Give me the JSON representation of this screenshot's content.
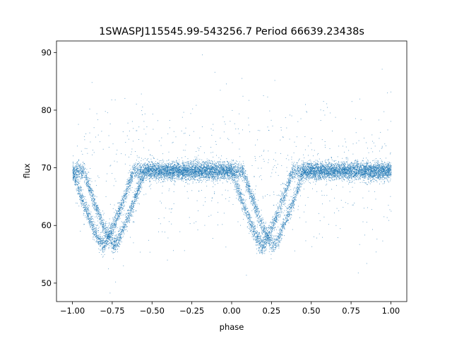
{
  "chart_data": {
    "type": "scatter",
    "title": "1SWASPJ115545.99-543256.7 Period 66639.23438s",
    "xlabel": "phase",
    "ylabel": "flux",
    "xlim": [
      -1.1,
      1.1
    ],
    "ylim": [
      46.8,
      92.0
    ],
    "x_ticks": [
      -1.0,
      -0.75,
      -0.5,
      -0.25,
      0.0,
      0.25,
      0.5,
      0.75,
      1.0
    ],
    "x_tick_labels": [
      "−1.00",
      "−0.75",
      "−0.50",
      "−0.25",
      "0.00",
      "0.25",
      "0.50",
      "0.75",
      "1.00"
    ],
    "y_ticks": [
      50,
      60,
      70,
      80,
      90
    ],
    "y_tick_labels": [
      "50",
      "60",
      "70",
      "80",
      "90"
    ],
    "grid": false,
    "legend": "none",
    "marker_color": "#1f77b4",
    "series": [
      {
        "baseline_flux": 69.5,
        "eclipses": [
          {
            "center_phase": -0.775,
            "depth_flux": 56.5
          },
          {
            "center_phase": 0.225,
            "depth_flux": 56.5
          }
        ]
      }
    ]
  }
}
